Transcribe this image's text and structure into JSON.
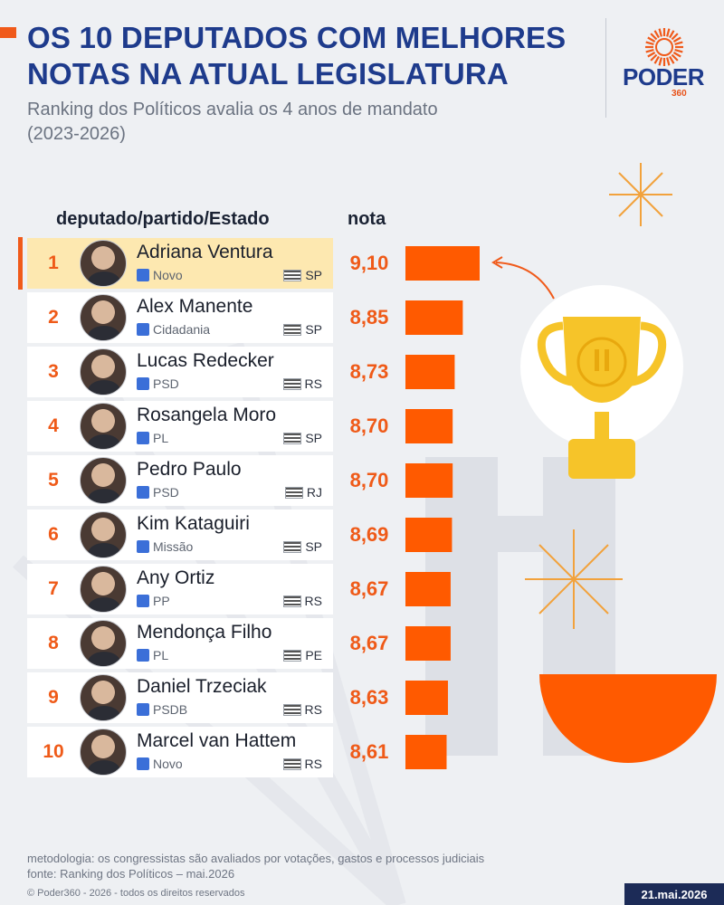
{
  "header": {
    "title_line1": "OS 10 DEPUTADOS COM MELHORES",
    "title_line2": "NOTAS NA ATUAL LEGISLATURA",
    "subtitle_line1": "Ranking dos Políticos avalia os 4 anos de mandato",
    "subtitle_line2": "(2023-2026)"
  },
  "logo": {
    "text": "PODER",
    "sub": "360"
  },
  "columns": {
    "deputy": "deputado/partido/Estado",
    "score": "nota"
  },
  "colors": {
    "accent": "#ff5a00",
    "title": "#1e3b8c",
    "highlight_row": "#fde8b0"
  },
  "chart_data": {
    "type": "bar",
    "orientation": "horizontal",
    "rows": [
      {
        "rank": "1",
        "name": "Adriana Ventura",
        "party": "Novo",
        "state": "SP",
        "score_label": "9,10",
        "value": 9.1
      },
      {
        "rank": "2",
        "name": "Alex Manente",
        "party": "Cidadania",
        "state": "SP",
        "score_label": "8,85",
        "value": 8.85
      },
      {
        "rank": "3",
        "name": "Lucas Redecker",
        "party": "PSD",
        "state": "RS",
        "score_label": "8,73",
        "value": 8.73
      },
      {
        "rank": "4",
        "name": "Rosangela Moro",
        "party": "PL",
        "state": "SP",
        "score_label": "8,70",
        "value": 8.7
      },
      {
        "rank": "5",
        "name": "Pedro Paulo",
        "party": "PSD",
        "state": "RJ",
        "score_label": "8,70",
        "value": 8.7
      },
      {
        "rank": "6",
        "name": "Kim Kataguiri",
        "party": "Missão",
        "state": "SP",
        "score_label": "8,69",
        "value": 8.69
      },
      {
        "rank": "7",
        "name": "Any Ortiz",
        "party": "PP",
        "state": "RS",
        "score_label": "8,67",
        "value": 8.67
      },
      {
        "rank": "8",
        "name": "Mendonça Filho",
        "party": "PL",
        "state": "PE",
        "score_label": "8,67",
        "value": 8.67
      },
      {
        "rank": "9",
        "name": "Daniel Trzeciak",
        "party": "PSDB",
        "state": "RS",
        "score_label": "8,63",
        "value": 8.63
      },
      {
        "rank": "10",
        "name": "Marcel van Hattem",
        "party": "Novo",
        "state": "RS",
        "score_label": "8,61",
        "value": 8.61
      }
    ]
  },
  "footer": {
    "method": "metodologia: os congressistas são avaliados por votações, gastos e processos judiciais",
    "source": "fonte: Ranking dos Políticos – mai.2026",
    "copyright": "© Poder360 - 2026 - todos os direitos reservados",
    "date": "21.mai.2026"
  }
}
